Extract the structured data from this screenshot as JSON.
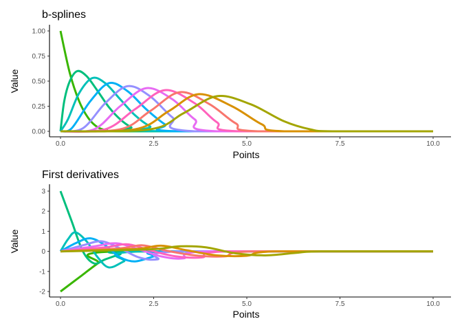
{
  "chart_data": [
    {
      "type": "line",
      "title": "b-splines",
      "xlabel": "Points",
      "ylabel": "Value",
      "xlim": [
        0,
        10
      ],
      "ylim": [
        0,
        1
      ],
      "x_ticks": [
        0,
        2.5,
        5,
        7.5,
        10
      ],
      "x_tick_labels": [
        "0.0",
        "2.5",
        "5.0",
        "7.5",
        "10.0"
      ],
      "y_ticks": [
        0,
        0.25,
        0.5,
        0.75,
        1
      ],
      "y_tick_labels": [
        "0.00",
        "0.25",
        "0.50",
        "0.75",
        "1.00"
      ],
      "grid": false,
      "legend": "none",
      "series": [
        {
          "color": "#39b600",
          "x": [
            0,
            0.25,
            0.5,
            0.75,
            1,
            1.25,
            1.5,
            10
          ],
          "values": [
            1,
            0.58,
            0.3,
            0.13,
            0.04,
            0.01,
            0,
            0
          ]
        },
        {
          "color": "#00bf7d",
          "x": [
            0,
            0.1,
            0.25,
            0.45,
            0.7,
            1,
            1.3,
            1.6,
            1.9,
            2.2,
            10
          ],
          "values": [
            0,
            0.3,
            0.5,
            0.6,
            0.55,
            0.4,
            0.24,
            0.12,
            0.04,
            0,
            0
          ]
        },
        {
          "color": "#00c0b8",
          "x": [
            0,
            0.2,
            0.5,
            0.85,
            1.2,
            1.6,
            2,
            2.4,
            2.8,
            10
          ],
          "values": [
            0,
            0.12,
            0.38,
            0.53,
            0.48,
            0.32,
            0.16,
            0.05,
            0,
            0
          ]
        },
        {
          "color": "#00b0f6",
          "x": [
            0,
            0.3,
            0.8,
            1.3,
            1.8,
            2.3,
            2.8,
            3.2,
            10
          ],
          "values": [
            0,
            0.03,
            0.3,
            0.48,
            0.4,
            0.22,
            0.07,
            0,
            0
          ]
        },
        {
          "color": "#9590ff",
          "x": [
            0,
            0.6,
            1.2,
            1.8,
            2.4,
            3,
            3.6,
            10
          ],
          "values": [
            0,
            0.03,
            0.28,
            0.45,
            0.35,
            0.14,
            0,
            0
          ]
        },
        {
          "color": "#e76bf3",
          "x": [
            0,
            0.9,
            1.6,
            2.3,
            3,
            3.6,
            4.2,
            10
          ],
          "values": [
            0,
            0.02,
            0.25,
            0.43,
            0.32,
            0.12,
            0,
            0
          ]
        },
        {
          "color": "#ff62bc",
          "x": [
            0,
            1.2,
            2,
            2.8,
            3.6,
            4.2,
            4.8,
            10
          ],
          "values": [
            0,
            0.02,
            0.22,
            0.41,
            0.28,
            0.09,
            0,
            0
          ]
        },
        {
          "color": "#f8766d",
          "x": [
            0,
            1.6,
            2.4,
            3.2,
            4,
            4.7,
            5.3,
            10
          ],
          "values": [
            0,
            0.02,
            0.2,
            0.39,
            0.27,
            0.08,
            0,
            0
          ]
        },
        {
          "color": "#d89000",
          "x": [
            0,
            2,
            2.9,
            3.7,
            4.6,
            5.4,
            6,
            10
          ],
          "values": [
            0,
            0.02,
            0.2,
            0.37,
            0.25,
            0.07,
            0,
            0
          ]
        },
        {
          "color": "#a3a500",
          "x": [
            0,
            2.4,
            3.3,
            4.2,
            5.1,
            6,
            6.7,
            7.3,
            10
          ],
          "values": [
            0,
            0.02,
            0.18,
            0.35,
            0.27,
            0.1,
            0.02,
            0,
            0
          ]
        }
      ]
    },
    {
      "type": "line",
      "title": "First derivatives",
      "xlabel": "Points",
      "ylabel": "Value",
      "xlim": [
        0,
        10
      ],
      "ylim": [
        -2,
        3
      ],
      "x_ticks": [
        0,
        2.5,
        5,
        7.5,
        10
      ],
      "x_tick_labels": [
        "0.0",
        "2.5",
        "5.0",
        "7.5",
        "10.0"
      ],
      "y_ticks": [
        -2,
        -1,
        0,
        1,
        2,
        3
      ],
      "y_tick_labels": [
        "-2",
        "-1",
        "0",
        "1",
        "2",
        "3"
      ],
      "grid": false,
      "legend": "none",
      "series": [
        {
          "color": "#39b600",
          "x": [
            0,
            0.5,
            1,
            1.5,
            10
          ],
          "values": [
            -2,
            -1.3,
            -0.6,
            0,
            0
          ]
        },
        {
          "color": "#00bf7d",
          "x": [
            0,
            0.3,
            0.6,
            0.9,
            1.2,
            1.6,
            2,
            10
          ],
          "values": [
            3,
            1.5,
            0,
            -0.6,
            -0.4,
            -0.15,
            0,
            0
          ]
        },
        {
          "color": "#00c0b8",
          "x": [
            0,
            0.2,
            0.4,
            0.7,
            1,
            1.3,
            1.7,
            2.2,
            10
          ],
          "values": [
            0,
            0.6,
            0.95,
            0.5,
            -0.3,
            -0.8,
            -0.5,
            0,
            0
          ]
        },
        {
          "color": "#00b0f6",
          "x": [
            0,
            0.4,
            0.8,
            1.2,
            1.6,
            2,
            2.5,
            3,
            10
          ],
          "values": [
            0,
            0.4,
            0.65,
            0.3,
            -0.3,
            -0.5,
            -0.25,
            0,
            0
          ]
        },
        {
          "color": "#9590ff",
          "x": [
            0,
            0.6,
            1.1,
            1.6,
            2.1,
            2.6,
            3.2,
            10
          ],
          "values": [
            0,
            0.3,
            0.5,
            0.15,
            -0.3,
            -0.4,
            0,
            0
          ]
        },
        {
          "color": "#e76bf3",
          "x": [
            0,
            0.9,
            1.5,
            2.1,
            2.7,
            3.3,
            4,
            10
          ],
          "values": [
            0,
            0.25,
            0.4,
            0.1,
            -0.25,
            -0.35,
            0,
            0
          ]
        },
        {
          "color": "#ff62bc",
          "x": [
            0,
            1.2,
            1.8,
            2.4,
            3.1,
            3.8,
            4.5,
            10
          ],
          "values": [
            0,
            0.2,
            0.35,
            0.05,
            -0.25,
            -0.3,
            0,
            0
          ]
        },
        {
          "color": "#f8766d",
          "x": [
            0,
            1.6,
            2.2,
            2.8,
            3.6,
            4.4,
            5.2,
            10
          ],
          "values": [
            0,
            0.15,
            0.3,
            0.05,
            -0.2,
            -0.25,
            0,
            0
          ]
        },
        {
          "color": "#d89000",
          "x": [
            0,
            2,
            2.7,
            3.4,
            4.2,
            5,
            5.8,
            10
          ],
          "values": [
            0,
            0.12,
            0.28,
            0.05,
            -0.2,
            -0.22,
            0,
            0
          ]
        },
        {
          "color": "#a3a500",
          "x": [
            0,
            2.4,
            3.2,
            3.9,
            4.7,
            5.5,
            6.3,
            7,
            10
          ],
          "values": [
            0,
            0.1,
            0.25,
            0.2,
            -0.1,
            -0.2,
            -0.08,
            0,
            0
          ]
        }
      ]
    }
  ]
}
